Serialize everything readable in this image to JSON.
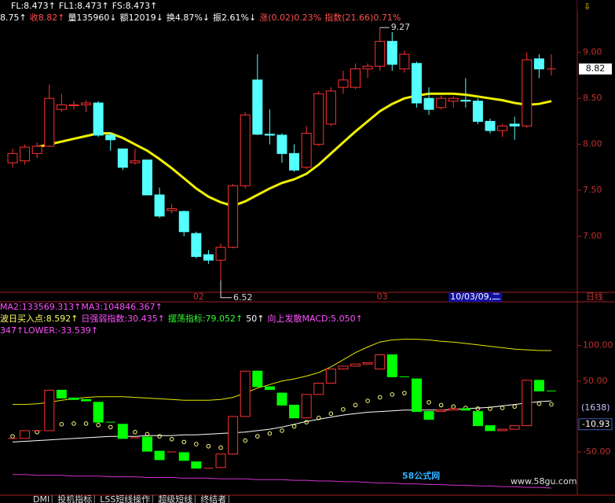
{
  "header_lines": [
    [
      {
        "text": "FL:8.473↑",
        "color": "#ffffff"
      },
      {
        "text": "FL1:8.473↑",
        "color": "#ffffff"
      },
      {
        "text": "FS:8.473↑",
        "color": "#ffffff"
      }
    ],
    [
      {
        "text": "8.75↑",
        "color": "#ffffff"
      },
      {
        "text": "收8.82↑",
        "color": "#ff5050"
      },
      {
        "text": "量135960↓",
        "color": "#ffffff"
      },
      {
        "text": "额12019↓",
        "color": "#ffffff"
      },
      {
        "text": "换4.87%↓",
        "color": "#ffffff"
      },
      {
        "text": "振2.61%↓",
        "color": "#ffffff"
      },
      {
        "text": "涨(0.02)0.23%",
        "color": "#ff5050"
      },
      {
        "text": "指数(21.66)0.71%",
        "color": "#ff5050"
      }
    ]
  ],
  "chart_data": [
    {
      "type": "candlestick",
      "categories": [
        null,
        null,
        null,
        null,
        null,
        null,
        null,
        null,
        null,
        null,
        null,
        null,
        null,
        null,
        null,
        "02",
        null,
        null,
        null,
        null,
        null,
        null,
        null,
        null,
        null,
        null,
        null,
        null,
        null,
        null,
        "03",
        null,
        null,
        null,
        null,
        null,
        "10/03/09,二",
        null,
        null,
        null,
        null,
        null,
        null,
        null,
        null
      ],
      "open": [
        7.8,
        7.82,
        7.9,
        7.98,
        8.38,
        8.42,
        8.43,
        8.45,
        8.1,
        7.95,
        7.8,
        7.83,
        7.45,
        7.28,
        7.27,
        7.03,
        6.8,
        6.74,
        6.88,
        7.55,
        8.7,
        8.11,
        8.1,
        7.9,
        7.75,
        8.0,
        8.22,
        8.62,
        8.62,
        8.82,
        8.85,
        9.12,
        8.82,
        8.88,
        8.5,
        8.4,
        8.47,
        8.48,
        8.47,
        8.25,
        8.15,
        8.22,
        8.2,
        8.93,
        8.82
      ],
      "high": [
        7.95,
        8.0,
        8.02,
        8.65,
        8.55,
        8.47,
        8.48,
        8.47,
        8.13,
        7.95,
        7.95,
        7.83,
        7.53,
        7.35,
        7.28,
        7.05,
        6.85,
        6.92,
        7.57,
        8.35,
        8.98,
        8.38,
        8.12,
        8.0,
        8.2,
        8.58,
        8.62,
        8.8,
        8.88,
        8.88,
        9.27,
        9.22,
        9.02,
        8.9,
        8.62,
        8.53,
        8.52,
        8.72,
        8.5,
        8.28,
        8.22,
        8.3,
        9.0,
        8.98,
        8.98
      ],
      "low": [
        7.75,
        7.78,
        7.85,
        7.97,
        8.35,
        8.38,
        8.35,
        8.08,
        7.93,
        7.72,
        7.78,
        7.45,
        7.2,
        7.25,
        7.0,
        6.76,
        6.7,
        6.52,
        6.87,
        7.52,
        8.1,
        8.0,
        7.8,
        7.7,
        7.73,
        7.98,
        8.2,
        8.55,
        8.6,
        8.72,
        8.8,
        8.8,
        8.78,
        8.4,
        8.32,
        8.38,
        8.4,
        8.4,
        8.22,
        8.12,
        8.08,
        8.05,
        8.18,
        8.72,
        8.75
      ],
      "close": [
        7.9,
        7.97,
        7.98,
        8.5,
        8.43,
        8.43,
        8.45,
        8.1,
        8.05,
        7.75,
        7.82,
        7.45,
        7.22,
        7.3,
        7.05,
        6.78,
        6.74,
        6.88,
        7.55,
        8.32,
        8.11,
        8.1,
        7.9,
        7.72,
        8.12,
        8.55,
        8.58,
        8.7,
        8.82,
        8.85,
        9.12,
        8.87,
        8.98,
        8.45,
        8.38,
        8.5,
        8.5,
        8.47,
        8.25,
        8.15,
        8.2,
        8.2,
        8.92,
        8.82,
        8.82
      ],
      "up_color": "#ff3232",
      "down_color": "#54ffff",
      "series": [
        {
          "color": "#f0f000",
          "width": 3,
          "values": [
            null,
            null,
            7.97,
            8.0,
            8.03,
            8.06,
            8.09,
            8.12,
            8.12,
            8.07,
            8.0,
            7.93,
            7.84,
            7.74,
            7.63,
            7.52,
            7.43,
            7.37,
            7.33,
            7.38,
            7.45,
            7.52,
            7.58,
            7.62,
            7.68,
            7.78,
            7.9,
            8.02,
            8.14,
            8.25,
            8.36,
            8.44,
            8.5,
            8.53,
            8.55,
            8.55,
            8.55,
            8.54,
            8.52,
            8.5,
            8.48,
            8.45,
            8.43,
            8.44,
            8.47
          ]
        }
      ],
      "ylim": [
        6.39,
        9.57
      ],
      "yticks": [
        {
          "value": 9,
          "label": "9.00"
        },
        {
          "value": 8.5,
          "label": "8.50"
        },
        {
          "value": 8,
          "label": "8.00"
        },
        {
          "value": 7.5,
          "label": "7.50"
        },
        {
          "value": 7,
          "label": "7.00"
        }
      ],
      "period_label": "日线"
    },
    {
      "type": "candlestick",
      "info_lines": [
        [
          {
            "text": "MA2:133569.313↑MA3:104846.367↑",
            "color": "#ff50ff"
          }
        ],
        [
          {
            "text": "波日买入点:8.592↑",
            "color": "#ffff60"
          },
          {
            "text": "日强弱指数:30.435↑",
            "color": "#ff50ff"
          },
          {
            "text": "摆荡指标:79.052↑",
            "color": "#30ff30"
          },
          {
            "text": "50↑",
            "color": "#ffffff"
          },
          {
            "text": "向上发散MACD:5.050↑",
            "color": "#ff50ff"
          }
        ],
        [
          {
            "text": "347↑LOWER:-33.539↑",
            "color": "#ff50ff"
          }
        ]
      ],
      "open": [
        -31,
        -31,
        -20,
        -20,
        37,
        26,
        24,
        20,
        -8,
        -11,
        -30,
        -29,
        -49,
        -50,
        -51,
        -64,
        -73,
        -72,
        -53,
        0,
        64,
        42,
        33,
        16,
        -2,
        31,
        47,
        67,
        71,
        74,
        67,
        87,
        56,
        53,
        7,
        7,
        9,
        11,
        7,
        -13,
        -20,
        -18,
        -13,
        51,
        36
      ],
      "close": [
        -31,
        -20,
        -20,
        37,
        26,
        24,
        22,
        -8,
        -9,
        -31,
        -29,
        -49,
        -61,
        -49,
        -62,
        -73,
        -72,
        -53,
        0,
        64,
        42,
        38,
        16,
        -2,
        31,
        47,
        67,
        71,
        74,
        76,
        87,
        56,
        55,
        7,
        -4,
        9,
        11,
        9,
        -13,
        -20,
        -18,
        -13,
        51,
        36,
        35
      ],
      "up_color": "#ff3232",
      "down_color": "#00ff00",
      "series": [
        {
          "color": "#e8e800",
          "width": 1,
          "values": [
            17,
            17,
            18,
            20,
            23,
            25,
            27,
            28,
            28,
            28,
            27,
            26,
            25,
            24,
            23,
            23,
            23,
            24,
            27,
            33,
            40,
            45,
            50,
            53,
            57,
            62,
            70,
            80,
            90,
            98,
            105,
            108,
            109,
            109,
            108,
            106,
            105,
            103,
            101,
            99,
            97,
            95,
            94,
            93,
            93
          ]
        },
        {
          "color": "#ffffff",
          "width": 1,
          "values": [
            -36,
            -35,
            -34,
            -33,
            -32,
            -31,
            -30,
            -29,
            -28,
            -28,
            -28,
            -27,
            -27,
            -27,
            -26,
            -26,
            -25,
            -24,
            -23,
            -22,
            -20,
            -18,
            -15,
            -11,
            -7,
            -4,
            -1,
            2,
            4,
            6,
            7,
            8,
            9,
            9,
            9,
            9,
            10,
            11,
            12,
            13,
            15,
            17,
            19,
            21,
            22
          ]
        },
        {
          "color": "#ffff80",
          "style": "dots",
          "values": [
            -28,
            -26,
            -22,
            -14,
            -11,
            -10,
            -10,
            -12,
            -15,
            -18,
            -22,
            -25,
            -28,
            -32,
            -36,
            -39,
            -42,
            -44,
            -40,
            -34,
            -28,
            -24,
            -20,
            -14,
            -8,
            -2,
            4,
            10,
            16,
            22,
            27,
            31,
            33,
            28,
            20,
            16,
            14,
            12,
            11,
            11,
            12,
            14,
            16,
            18,
            17
          ]
        },
        {
          "color": "#d030d0",
          "width": 1,
          "values": [
            -82,
            -82,
            -83,
            -83,
            -83,
            -84,
            -84,
            -84,
            -85,
            -85,
            -85,
            -86,
            -86,
            -86,
            -87,
            -87,
            -87,
            -88,
            -88,
            -88,
            -89,
            -89,
            -89,
            -90,
            -90,
            -91,
            -91,
            -92,
            -92,
            -93,
            -94,
            -94,
            -95,
            -95,
            -96,
            -96,
            -97,
            -97,
            -98,
            -98,
            -99,
            -99,
            -100,
            -100,
            -101
          ]
        }
      ],
      "ylim": [
        -111,
        113
      ],
      "yticks": [
        {
          "value": 100,
          "label": "100.00"
        },
        {
          "value": 50,
          "label": "50.00"
        },
        {
          "value": -50,
          "label": "-50.00"
        }
      ],
      "marker_count": "(1638)",
      "marker_value": -10.93
    }
  ],
  "tabs": [
    "DMI",
    "投机指标",
    "LSS短线操作",
    "超级短线",
    "终结者"
  ],
  "watermark": {
    "brand": "58公式网",
    "url": "www.58gu.com"
  }
}
